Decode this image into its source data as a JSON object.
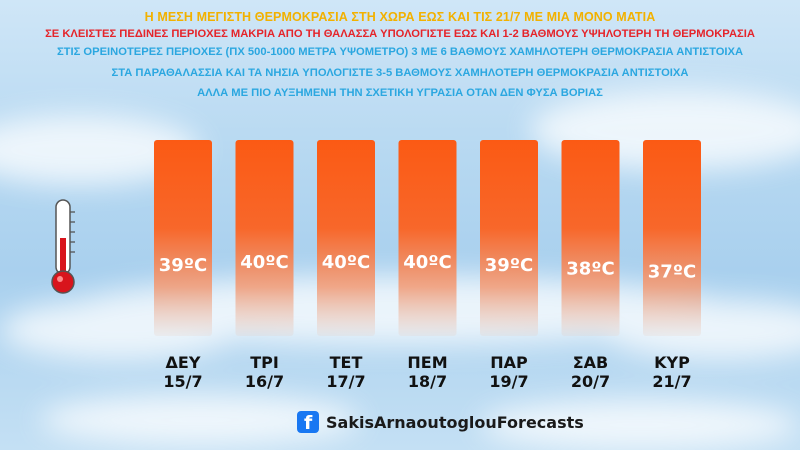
{
  "headlines": [
    "Η ΜΕΣΗ ΜΕΓΙΣΤΗ ΘΕΡΜΟΚΡΑΣΙΑ ΣΤΗ ΧΩΡΑ ΕΩΣ ΚΑΙ ΤΙΣ 21/7 ΜΕ ΜΙΑ ΜΟΝΟ ΜΑΤΙΑ",
    "ΣΕ ΚΛΕΙΣΤΕΣ ΠΕΔΙΝΕΣ ΠΕΡΙΟΧΕΣ ΜΑΚΡΙΑ ΑΠΟ ΤΗ ΘΑΛΑΣΣΑ ΥΠΟΛΟΓΙΣΤΕ ΕΩΣ ΚΑΙ 1-2 ΒΑΘΜΟΥΣ ΥΨΗΛΟΤΕΡΗ ΤΗ ΘΕΡΜΟΚΡΑΣΙΑ",
    "ΣΤΙΣ ΟΡΕΙΝΟΤΕΡΕΣ ΠΕΡΙΟΧΕΣ (ΠΧ 500-1000 ΜΕΤΡΑ ΥΨΟΜΕΤΡΟ) 3 ΜΕ 6 ΒΑΘΜΟΥΣ ΧΑΜΗΛΟΤΕΡΗ ΘΕΡΜΟΚΡΑΣΙΑ ΑΝΤΙΣΤΟΙΧΑ",
    "ΣΤΑ ΠΑΡΑΘΑΛΑΣΣΙΑ ΚΑΙ ΤΑ ΝΗΣΙΑ ΥΠΟΛΟΓΙΣΤΕ 3-5 ΒΑΘΜΟΥΣ ΧΑΜΗΛΟΤΕΡΗ ΘΕΡΜΟΚΡΑΣΙΑ ΑΝΤΙΣΤΟΙΧΑ",
    "ΑΛΛΑ ΜΕ ΠΙΟ ΑΥΞΗΜΕΝΗ ΤΗΝ ΣΧΕΤΙΚΗ ΥΓΡΑΣΙΑ ΟΤΑΝ ΔΕΝ ΦΥΣΑ ΒΟΡΙΑΣ"
  ],
  "chart_data": {
    "type": "bar",
    "unit": "°C",
    "categories": [
      "ΔΕΥ",
      "ΤΡΙ",
      "ΤΕΤ",
      "ΠΕΜ",
      "ΠΑΡ",
      "ΣΑΒ",
      "ΚΥΡ"
    ],
    "dates": [
      "15/7",
      "16/7",
      "17/7",
      "18/7",
      "19/7",
      "20/7",
      "21/7"
    ],
    "values": [
      39,
      40,
      40,
      40,
      39,
      38,
      37
    ],
    "value_labels": [
      "39ºC",
      "40ºC",
      "40ºC",
      "40ºC",
      "39ºC",
      "38ºC",
      "37ºC"
    ],
    "title": "",
    "xlabel": "",
    "ylabel": "",
    "grid": false,
    "colors": {
      "bar_top": "#fb5a14",
      "bar_mid": "#f77a3e",
      "bar_fade": "#e9bda9"
    }
  },
  "footer": {
    "icon": "facebook-icon",
    "text": "SakisArnaoutoglouForecasts"
  },
  "decor": {
    "icon": "thermometer-icon",
    "color": "#d8141c"
  }
}
